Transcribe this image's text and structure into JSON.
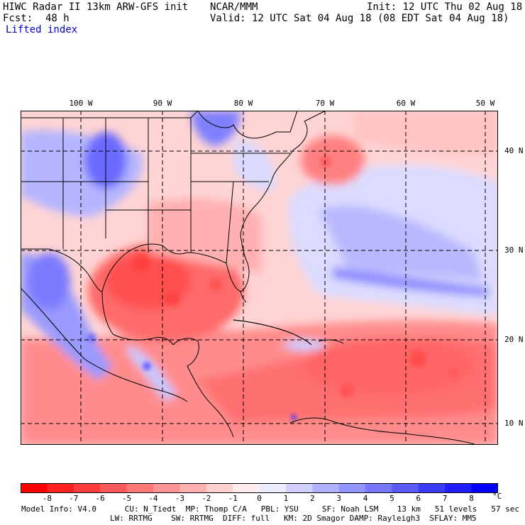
{
  "header": {
    "title_left": "HIWC Radar II 13km ARW-GFS init",
    "org": "NCAR/MMM",
    "init": "Init: 12 UTC Thu 02 Aug 18",
    "fcst_label": "Fcst:",
    "fcst_value": "48 h",
    "valid": "Valid: 12 UTC Sat 04 Aug 18 (08 EDT Sat 04 Aug 18)",
    "field": "Lifted index"
  },
  "map": {
    "lon_labels": [
      "100 W",
      "90 W",
      "80 W",
      "70 W",
      "60 W",
      "50 W"
    ],
    "lat_labels": [
      "40 N",
      "30 N",
      "20 N",
      "10 N"
    ],
    "colors": {
      "grid": "#000000",
      "border": "#000000"
    }
  },
  "colorbar": {
    "ticks": [
      "-8",
      "-7",
      "-6",
      "-5",
      "-4",
      "-3",
      "-2",
      "-1",
      "0",
      "1",
      "2",
      "3",
      "4",
      "5",
      "6",
      "7",
      "8"
    ],
    "unit": "°C",
    "colors": [
      "#ff0000",
      "#ff2020",
      "#ff3c3c",
      "#ff5a5a",
      "#ff7777",
      "#ff9494",
      "#ffb1b1",
      "#ffd0d0",
      "#ffecec",
      "#ececff",
      "#d0d0ff",
      "#b1b1ff",
      "#9494ff",
      "#7777ff",
      "#5a5aff",
      "#3c3cff",
      "#2020ff",
      "#0000ff"
    ]
  },
  "footer": {
    "line1": "Model Info: V4.0      CU: N_Tiedt  MP: Thomp C/A   PBL: YSU     SF: Noah LSM    13 km   51 levels   57 sec",
    "line2": "LW: RRTMG    SW: RRTMG  DIFF: full   KM: 2D Smagor DAMP: Rayleigh3  SFLAY: MM5"
  }
}
